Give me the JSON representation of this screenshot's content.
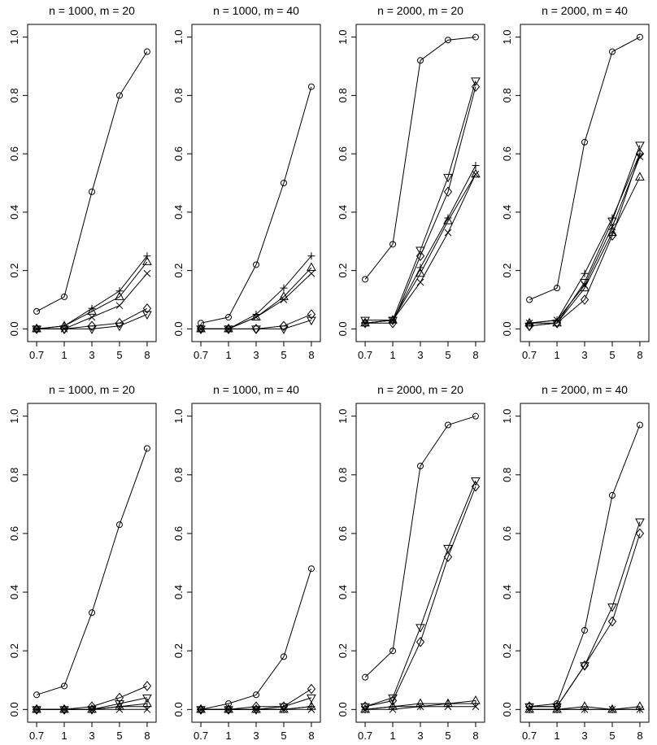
{
  "chart_data": [
    {
      "type": "line",
      "title": "n = 1000, m = 20",
      "x_categories": [
        "0.7",
        "1",
        "3",
        "5",
        "8"
      ],
      "yticks": [
        "0.0",
        "0.2",
        "0.4",
        "0.6",
        "0.8",
        "1.0"
      ],
      "ylim": [
        0,
        1
      ],
      "grid": false,
      "series": [
        {
          "marker": "circle",
          "values": [
            0.06,
            0.11,
            0.47,
            0.8,
            0.95
          ]
        },
        {
          "marker": "plus",
          "values": [
            0.0,
            0.01,
            0.07,
            0.13,
            0.25
          ]
        },
        {
          "marker": "triangle-up",
          "values": [
            0.0,
            0.01,
            0.06,
            0.11,
            0.23
          ]
        },
        {
          "marker": "cross",
          "values": [
            0.0,
            0.0,
            0.04,
            0.08,
            0.19
          ]
        },
        {
          "marker": "diamond",
          "values": [
            0.0,
            0.0,
            0.01,
            0.02,
            0.07
          ]
        },
        {
          "marker": "triangle-down",
          "values": [
            0.0,
            0.0,
            0.0,
            0.01,
            0.05
          ]
        }
      ]
    },
    {
      "type": "line",
      "title": "n = 1000, m = 40",
      "x_categories": [
        "0.7",
        "1",
        "3",
        "5",
        "8"
      ],
      "yticks": [
        "0.0",
        "0.2",
        "0.4",
        "0.6",
        "0.8",
        "1.0"
      ],
      "ylim": [
        0,
        1
      ],
      "grid": false,
      "series": [
        {
          "marker": "circle",
          "values": [
            0.02,
            0.04,
            0.22,
            0.5,
            0.83
          ]
        },
        {
          "marker": "plus",
          "values": [
            0.0,
            0.0,
            0.05,
            0.14,
            0.25
          ]
        },
        {
          "marker": "triangle-up",
          "values": [
            0.0,
            0.0,
            0.04,
            0.11,
            0.21
          ]
        },
        {
          "marker": "cross",
          "values": [
            0.0,
            0.0,
            0.04,
            0.1,
            0.19
          ]
        },
        {
          "marker": "diamond",
          "values": [
            0.0,
            0.0,
            0.0,
            0.01,
            0.05
          ]
        },
        {
          "marker": "triangle-down",
          "values": [
            0.0,
            0.0,
            0.0,
            0.0,
            0.03
          ]
        }
      ]
    },
    {
      "type": "line",
      "title": "n = 2000, m = 20",
      "x_categories": [
        "0.7",
        "1",
        "3",
        "5",
        "8"
      ],
      "yticks": [
        "0.0",
        "0.2",
        "0.4",
        "0.6",
        "0.8",
        "1.0"
      ],
      "ylim": [
        0,
        1
      ],
      "grid": false,
      "series": [
        {
          "marker": "circle",
          "values": [
            0.17,
            0.29,
            0.92,
            0.99,
            1.0
          ]
        },
        {
          "marker": "triangle-down",
          "values": [
            0.03,
            0.03,
            0.27,
            0.52,
            0.85
          ]
        },
        {
          "marker": "diamond",
          "values": [
            0.02,
            0.02,
            0.25,
            0.47,
            0.83
          ]
        },
        {
          "marker": "plus",
          "values": [
            0.02,
            0.03,
            0.21,
            0.38,
            0.56
          ]
        },
        {
          "marker": "triangle-up",
          "values": [
            0.02,
            0.03,
            0.19,
            0.37,
            0.53
          ]
        },
        {
          "marker": "cross",
          "values": [
            0.02,
            0.03,
            0.16,
            0.33,
            0.53
          ]
        }
      ]
    },
    {
      "type": "line",
      "title": "n = 2000, m = 40",
      "x_categories": [
        "0.7",
        "1",
        "3",
        "5",
        "8"
      ],
      "yticks": [
        "0.0",
        "0.2",
        "0.4",
        "0.6",
        "0.8",
        "1.0"
      ],
      "ylim": [
        0,
        1
      ],
      "grid": false,
      "series": [
        {
          "marker": "circle",
          "values": [
            0.1,
            0.14,
            0.64,
            0.95,
            1.0
          ]
        },
        {
          "marker": "triangle-down",
          "values": [
            0.01,
            0.02,
            0.16,
            0.37,
            0.63
          ]
        },
        {
          "marker": "plus",
          "values": [
            0.02,
            0.03,
            0.19,
            0.38,
            0.6
          ]
        },
        {
          "marker": "cross",
          "values": [
            0.02,
            0.03,
            0.15,
            0.35,
            0.59
          ]
        },
        {
          "marker": "triangle-up",
          "values": [
            0.02,
            0.02,
            0.14,
            0.33,
            0.52
          ]
        },
        {
          "marker": "diamond",
          "values": [
            0.01,
            0.02,
            0.1,
            0.32,
            0.6
          ]
        }
      ]
    },
    {
      "type": "line",
      "title": "n = 1000, m = 20",
      "x_categories": [
        "0.7",
        "1",
        "3",
        "5",
        "8"
      ],
      "yticks": [
        "0.0",
        "0.2",
        "0.4",
        "0.6",
        "0.8",
        "1.0"
      ],
      "ylim": [
        0,
        1
      ],
      "grid": false,
      "series": [
        {
          "marker": "circle",
          "values": [
            0.05,
            0.08,
            0.33,
            0.63,
            0.89
          ]
        },
        {
          "marker": "diamond",
          "values": [
            0.0,
            0.0,
            0.01,
            0.04,
            0.08
          ]
        },
        {
          "marker": "triangle-down",
          "values": [
            0.0,
            0.0,
            0.0,
            0.02,
            0.04
          ]
        },
        {
          "marker": "triangle-up",
          "values": [
            0.0,
            0.0,
            0.0,
            0.01,
            0.02
          ]
        },
        {
          "marker": "plus",
          "values": [
            0.0,
            0.0,
            0.0,
            0.01,
            0.01
          ]
        },
        {
          "marker": "cross",
          "values": [
            0.0,
            0.0,
            0.0,
            0.0,
            0.0
          ]
        }
      ]
    },
    {
      "type": "line",
      "title": "n = 1000, m = 40",
      "x_categories": [
        "0.7",
        "1",
        "3",
        "5",
        "8"
      ],
      "yticks": [
        "0.0",
        "0.2",
        "0.4",
        "0.6",
        "0.8",
        "1.0"
      ],
      "ylim": [
        0,
        1
      ],
      "grid": false,
      "series": [
        {
          "marker": "circle",
          "values": [
            0.0,
            0.02,
            0.05,
            0.18,
            0.48
          ]
        },
        {
          "marker": "diamond",
          "values": [
            0.0,
            0.0,
            0.01,
            0.01,
            0.07
          ]
        },
        {
          "marker": "triangle-down",
          "values": [
            0.0,
            0.0,
            0.0,
            0.01,
            0.04
          ]
        },
        {
          "marker": "triangle-up",
          "values": [
            0.0,
            0.0,
            0.0,
            0.0,
            0.01
          ]
        },
        {
          "marker": "plus",
          "values": [
            0.0,
            0.0,
            0.0,
            0.0,
            0.01
          ]
        },
        {
          "marker": "cross",
          "values": [
            0.0,
            0.0,
            0.0,
            0.0,
            0.0
          ]
        }
      ]
    },
    {
      "type": "line",
      "title": "n = 2000, m = 20",
      "x_categories": [
        "0.7",
        "1",
        "3",
        "5",
        "8"
      ],
      "yticks": [
        "0.0",
        "0.2",
        "0.4",
        "0.6",
        "0.8",
        "1.0"
      ],
      "ylim": [
        0,
        1
      ],
      "grid": false,
      "series": [
        {
          "marker": "circle",
          "values": [
            0.11,
            0.2,
            0.83,
            0.97,
            1.0
          ]
        },
        {
          "marker": "triangle-down",
          "values": [
            0.01,
            0.04,
            0.28,
            0.55,
            0.78
          ]
        },
        {
          "marker": "diamond",
          "values": [
            0.01,
            0.03,
            0.23,
            0.52,
            0.76
          ]
        },
        {
          "marker": "triangle-up",
          "values": [
            0.0,
            0.01,
            0.02,
            0.02,
            0.03
          ]
        },
        {
          "marker": "plus",
          "values": [
            0.0,
            0.01,
            0.01,
            0.02,
            0.02
          ]
        },
        {
          "marker": "cross",
          "values": [
            0.0,
            0.0,
            0.01,
            0.01,
            0.01
          ]
        }
      ]
    },
    {
      "type": "line",
      "title": "n = 2000, m = 40",
      "x_categories": [
        "0.7",
        "1",
        "3",
        "5",
        "8"
      ],
      "yticks": [
        "0.0",
        "0.2",
        "0.4",
        "0.6",
        "0.8",
        "1.0"
      ],
      "ylim": [
        0,
        1
      ],
      "grid": false,
      "series": [
        {
          "marker": "circle",
          "values": [
            0.01,
            0.02,
            0.27,
            0.73,
            0.97
          ]
        },
        {
          "marker": "triangle-down",
          "values": [
            0.01,
            0.01,
            0.15,
            0.35,
            0.64
          ]
        },
        {
          "marker": "diamond",
          "values": [
            0.01,
            0.01,
            0.15,
            0.3,
            0.6
          ]
        },
        {
          "marker": "triangle-up",
          "values": [
            0.0,
            0.0,
            0.01,
            0.0,
            0.01
          ]
        },
        {
          "marker": "plus",
          "values": [
            0.0,
            0.0,
            0.0,
            0.0,
            0.0
          ]
        },
        {
          "marker": "cross",
          "values": [
            0.0,
            0.0,
            0.0,
            0.0,
            0.0
          ]
        }
      ]
    }
  ]
}
